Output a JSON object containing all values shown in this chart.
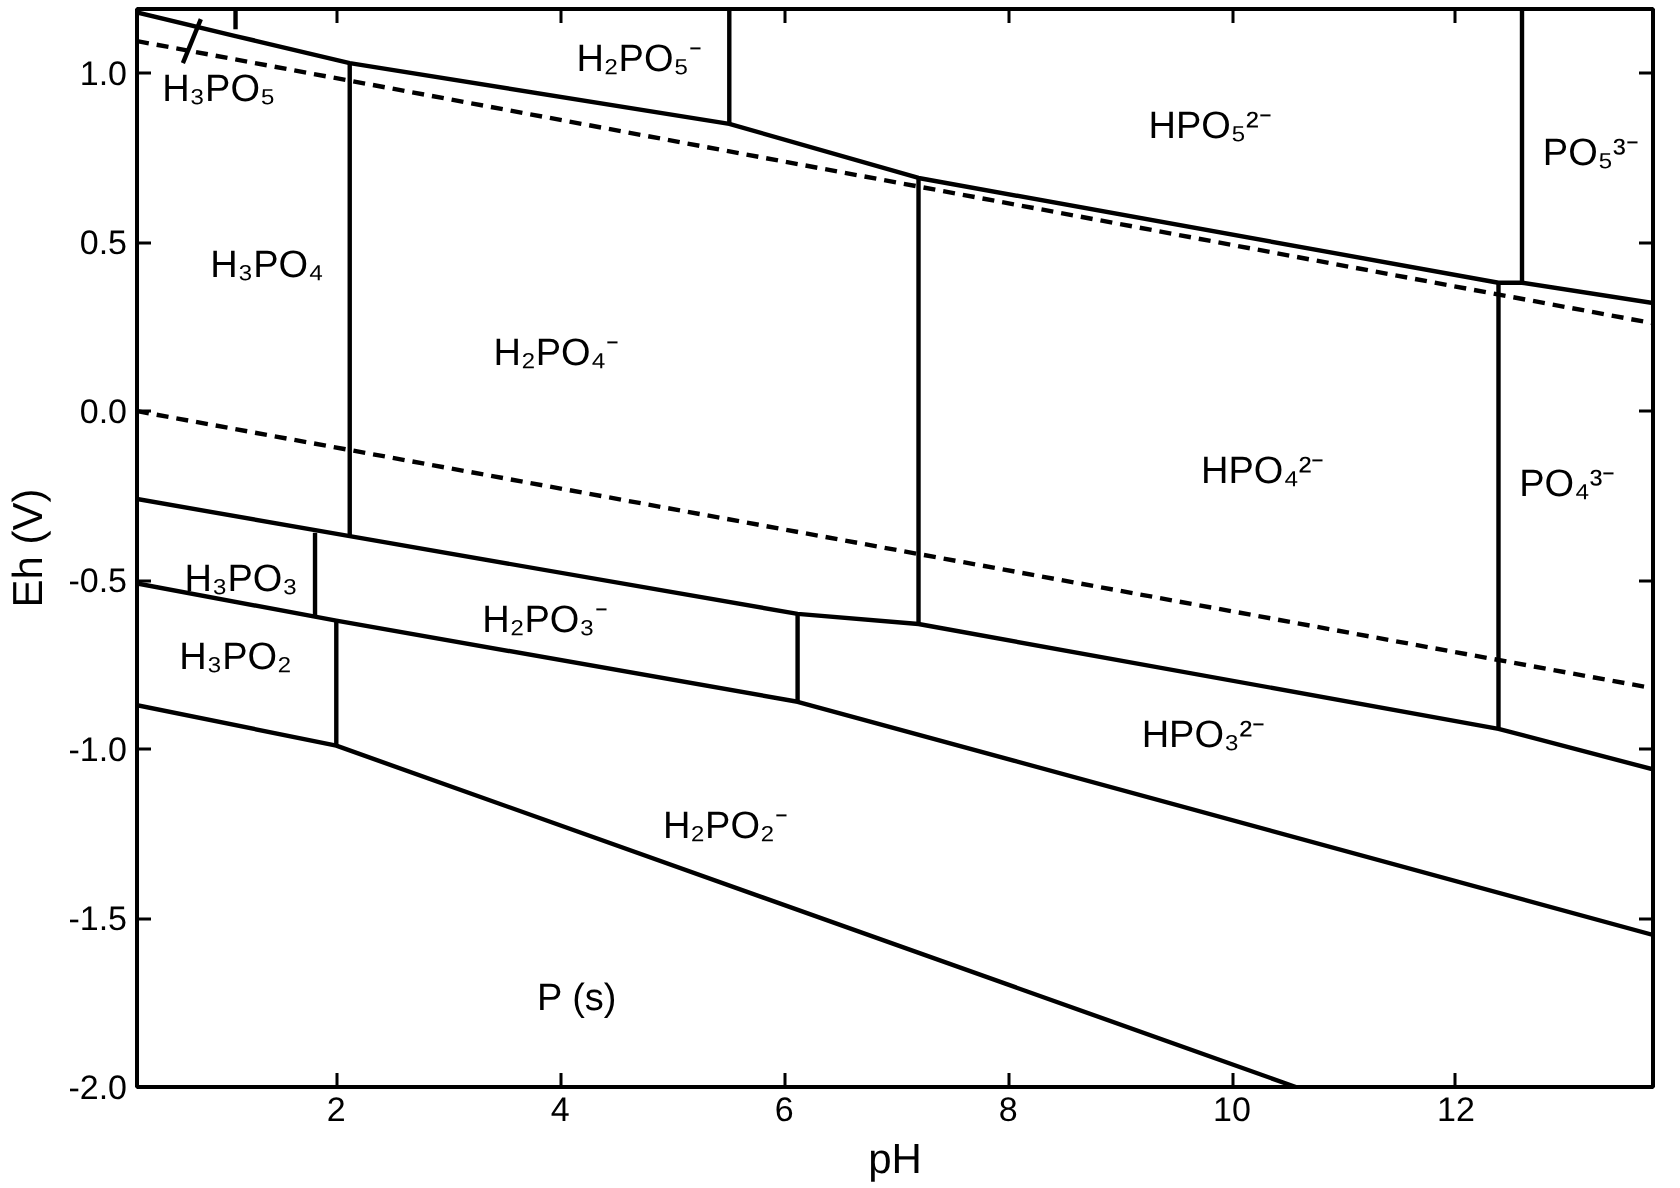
{
  "chart_data": {
    "type": "line",
    "xlabel": "pH",
    "ylabel": "Eh (V)",
    "xlim": [
      0.22,
      13.76
    ],
    "ylim": [
      -2.0,
      1.19
    ],
    "xticks": [
      2,
      4,
      6,
      8,
      10,
      12
    ],
    "yticks": [
      {
        "value": -2,
        "label": "-2.0"
      },
      {
        "value": -1.5,
        "label": "-1.5"
      },
      {
        "value": -1,
        "label": "-1.0"
      },
      {
        "value": -0.5,
        "label": "-0.5"
      },
      {
        "value": 0,
        "label": "0.0"
      },
      0.5,
      {
        "value": 1,
        "label": "1.0"
      }
    ],
    "grid": false,
    "marker": "none",
    "series": [
      {
        "color": "#000000",
        "line_style": "solid",
        "x": [
          0.22,
          1.1,
          2.12,
          5.51,
          7.2,
          12.38,
          12.59,
          13.76
        ],
        "values": [
          1.18,
          1.11,
          1.03,
          0.85,
          0.69,
          0.38,
          0.38,
          0.32
        ]
      },
      {
        "color": "#000000",
        "line_style": "solid",
        "x": [
          1.1,
          1.1
        ],
        "values": [
          1.19,
          1.13
        ]
      },
      {
        "color": "#000000",
        "line_style": "solid",
        "x": [
          0.63,
          0.79
        ],
        "values": [
          1.03,
          1.16
        ]
      },
      {
        "color": "#000000",
        "line_style": "solid",
        "x": [
          5.51,
          5.51
        ],
        "values": [
          1.19,
          0.85
        ]
      },
      {
        "color": "#000000",
        "line_style": "solid",
        "x": [
          12.59,
          12.59
        ],
        "values": [
          1.19,
          0.38
        ]
      },
      {
        "color": "#000000",
        "line_style": "dashed",
        "x": [
          0.22,
          13.76
        ],
        "values": [
          1.095,
          0.26
        ]
      },
      {
        "color": "#000000",
        "line_style": "dashed",
        "x": [
          0.22,
          13.76
        ],
        "values": [
          0.0,
          -0.82
        ]
      },
      {
        "color": "#000000",
        "line_style": "solid",
        "x": [
          2.12,
          2.12
        ],
        "values": [
          1.03,
          -0.37
        ]
      },
      {
        "color": "#000000",
        "line_style": "solid",
        "x": [
          7.2,
          7.2
        ],
        "values": [
          0.69,
          -0.63
        ]
      },
      {
        "color": "#000000",
        "line_style": "solid",
        "x": [
          12.38,
          12.38
        ],
        "values": [
          0.38,
          -0.94
        ]
      },
      {
        "color": "#000000",
        "line_style": "solid",
        "x": [
          0.22,
          2.12,
          6.12,
          7.2,
          12.38,
          13.76
        ],
        "values": [
          -0.26,
          -0.37,
          -0.6,
          -0.63,
          -0.94,
          -1.06
        ]
      },
      {
        "color": "#000000",
        "line_style": "solid",
        "x": [
          1.81,
          1.81
        ],
        "values": [
          -0.36,
          -0.61
        ]
      },
      {
        "color": "#000000",
        "line_style": "solid",
        "x": [
          6.12,
          6.12
        ],
        "values": [
          -0.6,
          -0.86
        ]
      },
      {
        "color": "#000000",
        "line_style": "solid",
        "x": [
          0.22,
          2.0,
          6.12,
          13.76
        ],
        "values": [
          -0.51,
          -0.62,
          -0.86,
          -1.55
        ]
      },
      {
        "color": "#000000",
        "line_style": "solid",
        "x": [
          2.0,
          2.0
        ],
        "values": [
          -0.62,
          -0.99
        ]
      },
      {
        "color": "#000000",
        "line_style": "solid",
        "x": [
          0.22,
          2.0,
          10.57
        ],
        "values": [
          -0.87,
          -0.99,
          -2.0
        ]
      }
    ],
    "annotations": [
      "H₂PO₅⁻",
      "HPO₅²⁻",
      "PO₅³⁻",
      "H₃PO₅",
      "H₃PO₄",
      "H₂PO₄⁻",
      "HPO₄²⁻",
      "PO₄³⁻",
      "H₃PO₃",
      "H₂PO₃⁻",
      "H₃PO₂",
      "HPO₃²⁻",
      "H₂PO₂⁻",
      "P (s)"
    ]
  }
}
